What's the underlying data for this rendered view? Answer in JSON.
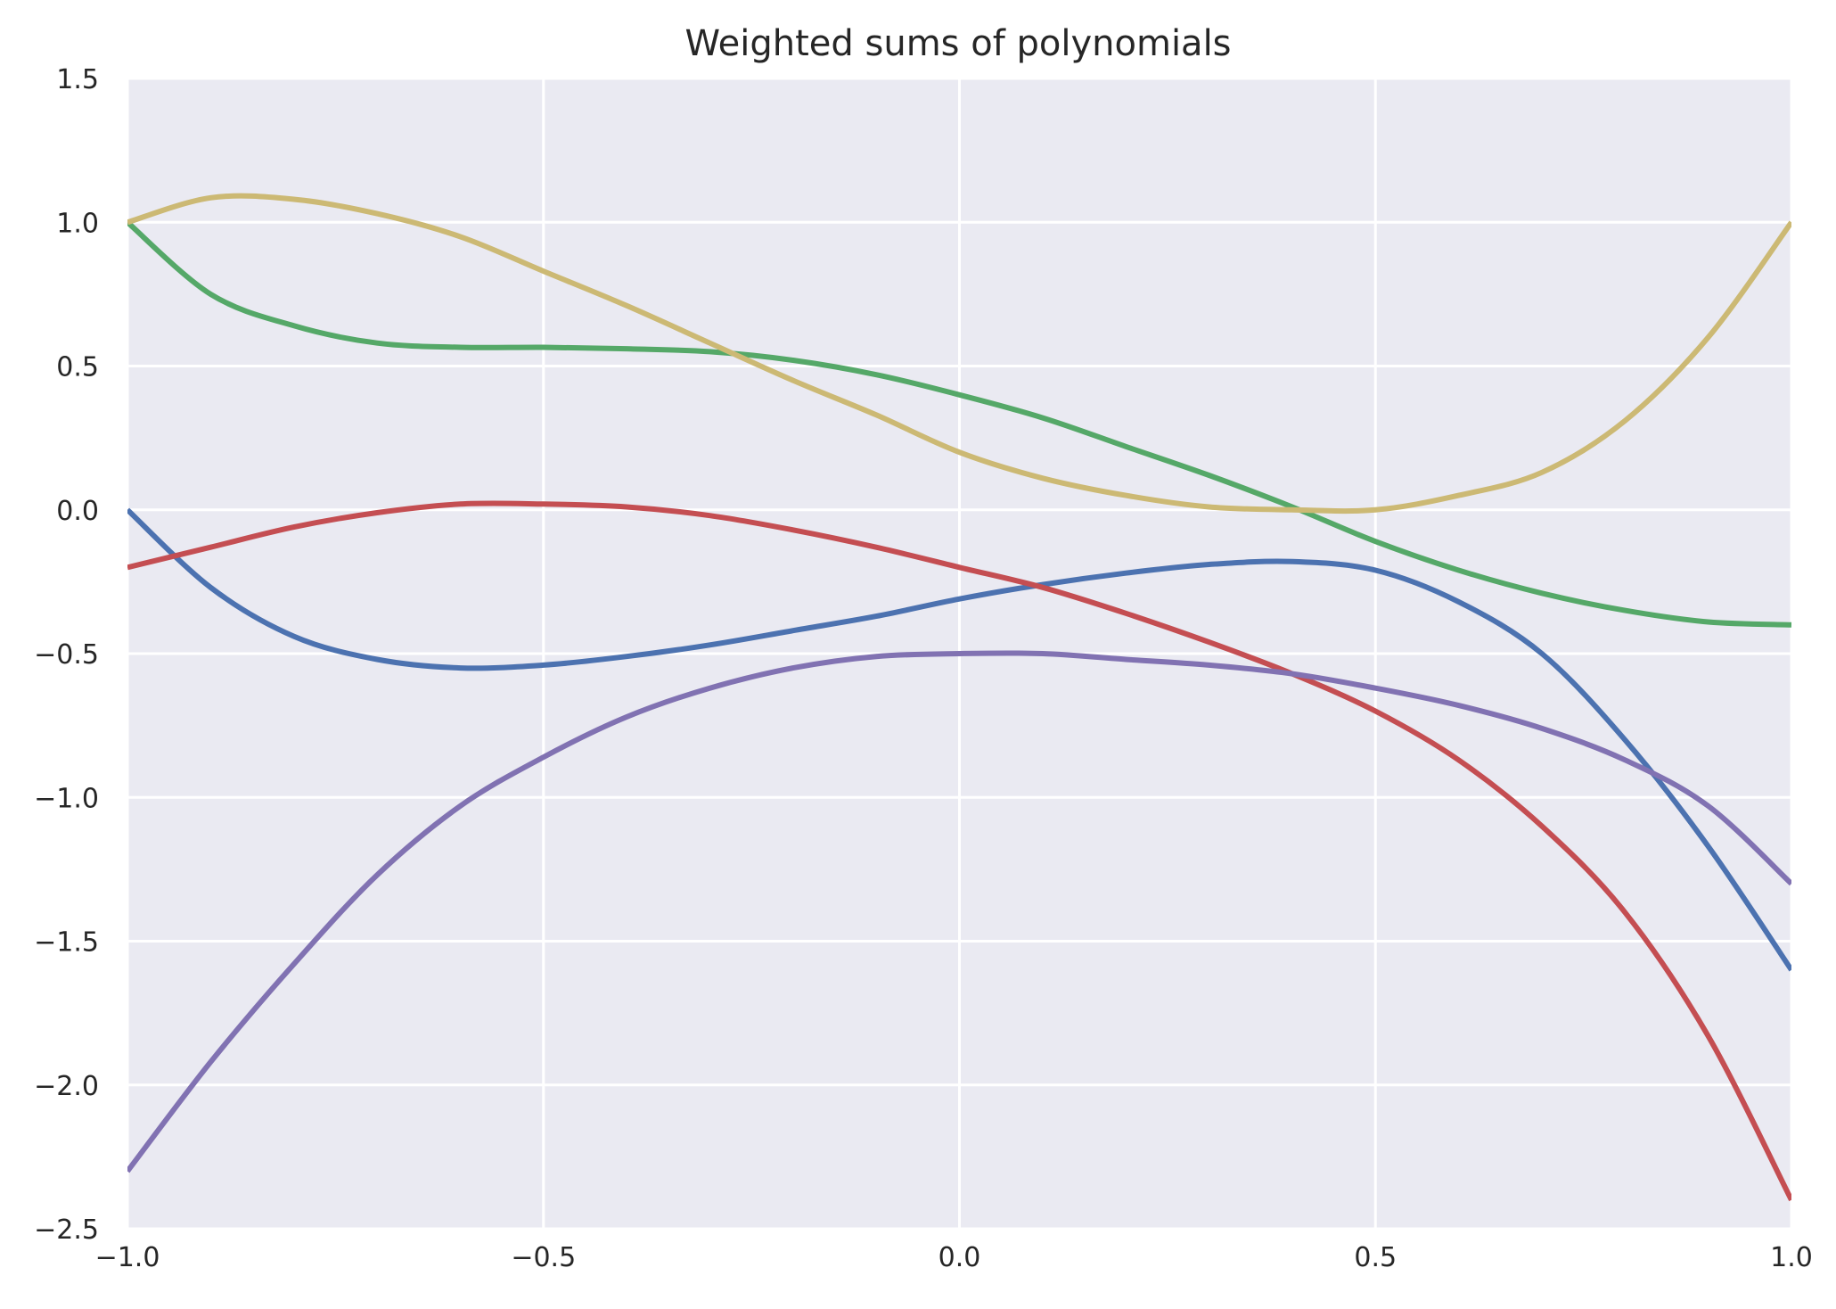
{
  "chart_data": {
    "type": "line",
    "title": "Weighted sums of polynomials",
    "xlabel": "",
    "ylabel": "",
    "xlim": [
      -1.0,
      1.0
    ],
    "ylim": [
      -2.5,
      1.5
    ],
    "x_ticks": [
      -1.0,
      -0.5,
      0.0,
      0.5,
      1.0
    ],
    "x_tick_labels": [
      "−1.0",
      "−0.5",
      "0.0",
      "0.5",
      "1.0"
    ],
    "y_ticks": [
      1.5,
      1.0,
      0.5,
      0.0,
      -0.5,
      -1.0,
      -1.5,
      -2.0,
      -2.5
    ],
    "y_tick_labels": [
      "1.5",
      "1.0",
      "0.5",
      "0.0",
      "−0.5",
      "−1.0",
      "−1.5",
      "−2.0",
      "−2.5"
    ],
    "grid": true,
    "background": "#eaeaf2",
    "grid_color": "#ffffff",
    "x": [
      -1.0,
      -0.9,
      -0.8,
      -0.7,
      -0.6,
      -0.5,
      -0.4,
      -0.3,
      -0.2,
      -0.1,
      0.0,
      0.1,
      0.2,
      0.3,
      0.4,
      0.5,
      0.6,
      0.7,
      0.8,
      0.9,
      1.0
    ],
    "series": [
      {
        "color": "#4c72b0",
        "values": [
          0.0,
          -0.27,
          -0.44,
          -0.52,
          -0.55,
          -0.54,
          -0.51,
          -0.47,
          -0.42,
          -0.37,
          -0.31,
          -0.26,
          -0.22,
          -0.19,
          -0.18,
          -0.21,
          -0.32,
          -0.5,
          -0.8,
          -1.17,
          -1.6
        ]
      },
      {
        "color": "#55a868",
        "values": [
          1.0,
          0.75,
          0.64,
          0.58,
          0.565,
          0.565,
          0.56,
          0.55,
          0.52,
          0.47,
          0.4,
          0.32,
          0.22,
          0.12,
          0.01,
          -0.11,
          -0.21,
          -0.29,
          -0.35,
          -0.39,
          -0.4
        ]
      },
      {
        "color": "#c44e52",
        "values": [
          -0.2,
          -0.13,
          -0.06,
          -0.01,
          0.02,
          0.02,
          0.01,
          -0.02,
          -0.07,
          -0.13,
          -0.2,
          -0.27,
          -0.36,
          -0.46,
          -0.57,
          -0.7,
          -0.87,
          -1.1,
          -1.4,
          -1.83,
          -2.4
        ]
      },
      {
        "color": "#8172b2",
        "values": [
          -2.3,
          -1.92,
          -1.58,
          -1.27,
          -1.03,
          -0.86,
          -0.72,
          -0.62,
          -0.55,
          -0.51,
          -0.5,
          -0.5,
          -0.52,
          -0.54,
          -0.57,
          -0.62,
          -0.68,
          -0.76,
          -0.87,
          -1.03,
          -1.3
        ]
      },
      {
        "color": "#ccb974",
        "values": [
          1.0,
          1.085,
          1.08,
          1.03,
          0.95,
          0.83,
          0.71,
          0.58,
          0.45,
          0.33,
          0.2,
          0.11,
          0.05,
          0.01,
          0.0,
          0.0,
          0.05,
          0.13,
          0.31,
          0.6,
          1.0
        ]
      }
    ]
  }
}
